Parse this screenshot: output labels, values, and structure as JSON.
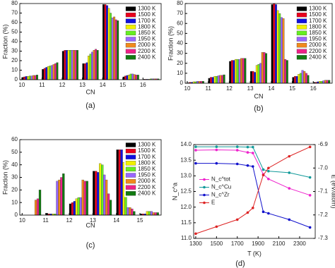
{
  "chart_data": [
    {
      "type": "bar",
      "caption": "(a)",
      "xlabel": "CN",
      "ylabel": "Fraction (%)",
      "categories": [
        "10",
        "11",
        "12",
        "13",
        "14",
        "15",
        "16"
      ],
      "ylim": [
        0,
        80
      ],
      "yticks": [
        0,
        10,
        20,
        30,
        40,
        50,
        60,
        70,
        80
      ],
      "legend": "upper right",
      "series": [
        {
          "name": "1300 K",
          "color": "#000000",
          "values": [
            2.5,
            11,
            30,
            17,
            79,
            3,
            0.5
          ]
        },
        {
          "name": "1500 K",
          "color": "#e8001c",
          "values": [
            3,
            12,
            31,
            17,
            79,
            4,
            0.5
          ]
        },
        {
          "name": "1700 K",
          "color": "#1010e0",
          "values": [
            3.5,
            13,
            31,
            18,
            78,
            4.5,
            0.5
          ]
        },
        {
          "name": "1800 K",
          "color": "#f0f000",
          "values": [
            3.5,
            14,
            31,
            25,
            75,
            5,
            0.5
          ]
        },
        {
          "name": "1850 K",
          "color": "#66ee22",
          "values": [
            4,
            14.5,
            31,
            27,
            70,
            6,
            1
          ]
        },
        {
          "name": "1950 K",
          "color": "#9966ff",
          "values": [
            4,
            15,
            31,
            29,
            65,
            6,
            1
          ]
        },
        {
          "name": "2000 K",
          "color": "#f08a1c",
          "values": [
            4.5,
            16,
            31,
            31,
            66,
            5.5,
            1
          ]
        },
        {
          "name": "2200 K",
          "color": "#ee2288",
          "values": [
            4.5,
            17,
            31,
            32,
            63,
            5,
            1
          ]
        },
        {
          "name": "2400 K",
          "color": "#117a11",
          "values": [
            5,
            18,
            31,
            31,
            62,
            5,
            1
          ]
        }
      ]
    },
    {
      "type": "bar",
      "caption": "(b)",
      "xlabel": "CN",
      "ylabel": "Fraction (%)",
      "categories": [
        "10",
        "11",
        "12",
        "13",
        "14",
        "15",
        "16"
      ],
      "ylim": [
        0,
        80
      ],
      "yticks": [
        0,
        10,
        20,
        30,
        40,
        50,
        60,
        70,
        80
      ],
      "legend": "upper right",
      "series": [
        {
          "name": "1300 K",
          "color": "#000000",
          "values": [
            0.5,
            5,
            22,
            12,
            79,
            6,
            1
          ]
        },
        {
          "name": "1500 K",
          "color": "#e8001c",
          "values": [
            1,
            6,
            23,
            12,
            80,
            7,
            1
          ]
        },
        {
          "name": "1700 K",
          "color": "#1010e0",
          "values": [
            1,
            6,
            23,
            11,
            79,
            7,
            1.5
          ]
        },
        {
          "name": "1800 K",
          "color": "#f0f000",
          "values": [
            1.5,
            7,
            24,
            18,
            73,
            9,
            2
          ]
        },
        {
          "name": "1850 K",
          "color": "#66ee22",
          "values": [
            1.5,
            7,
            24,
            19,
            70,
            10,
            2
          ]
        },
        {
          "name": "1950 K",
          "color": "#9966ff",
          "values": [
            2,
            7.5,
            24,
            20,
            66,
            13,
            2.5
          ]
        },
        {
          "name": "2000 K",
          "color": "#f08a1c",
          "values": [
            2,
            8,
            25,
            31,
            65,
            12,
            3
          ]
        },
        {
          "name": "2200 K",
          "color": "#ee2288",
          "values": [
            2,
            8,
            25,
            31,
            24,
            10,
            3
          ]
        },
        {
          "name": "2400 K",
          "color": "#117a11",
          "values": [
            2,
            8.5,
            25,
            30,
            23,
            8,
            3
          ]
        }
      ]
    },
    {
      "type": "bar",
      "caption": "(c)",
      "xlabel": "CN",
      "ylabel": "Fraction (%)",
      "categories": [
        "10",
        "11",
        "12",
        "13",
        "14",
        "15"
      ],
      "ylim": [
        0,
        60
      ],
      "yticks": [
        0,
        10,
        20,
        30,
        40,
        50,
        60
      ],
      "legend": "upper right",
      "series": [
        {
          "name": "1300 K",
          "color": "#000000",
          "values": [
            0,
            1.5,
            9,
            35,
            52,
            1
          ]
        },
        {
          "name": "1500 K",
          "color": "#e8001c",
          "values": [
            0,
            1,
            10,
            35,
            52,
            1
          ]
        },
        {
          "name": "1700 K",
          "color": "#1010e0",
          "values": [
            0,
            1,
            11,
            34,
            52,
            1
          ]
        },
        {
          "name": "1800 K",
          "color": "#f0f000",
          "values": [
            0,
            1,
            13,
            41,
            42,
            3
          ]
        },
        {
          "name": "1850 K",
          "color": "#66ee22",
          "values": [
            0,
            1,
            14,
            40,
            42,
            3
          ]
        },
        {
          "name": "1950 K",
          "color": "#9966ff",
          "values": [
            0,
            27,
            14,
            32,
            6,
            3
          ]
        },
        {
          "name": "2000 K",
          "color": "#f08a1c",
          "values": [
            12,
            28,
            28,
            28,
            6,
            2
          ]
        },
        {
          "name": "2200 K",
          "color": "#ee2288",
          "values": [
            13,
            30,
            27,
            17,
            5,
            2
          ]
        },
        {
          "name": "2400 K",
          "color": "#117a11",
          "values": [
            20,
            33,
            27,
            12,
            3,
            2
          ]
        }
      ]
    },
    {
      "type": "line",
      "caption": "(d)",
      "xlabel": "T (K)",
      "ylabel": "N_c^a",
      "y2label": "E (eV/atom)",
      "x": [
        1300,
        1500,
        1700,
        1800,
        1850,
        1950,
        2000,
        2200,
        2400
      ],
      "xlim": [
        1280,
        2450
      ],
      "xticks": [
        1300,
        1500,
        1700,
        1900,
        2100,
        2300
      ],
      "ylim": [
        11,
        14
      ],
      "yticks": [
        {
          "value": 11,
          "label": "11.0"
        },
        11.5,
        {
          "value": 12,
          "label": "12.0"
        },
        12.5,
        {
          "value": 13,
          "label": "13.0"
        },
        13.5,
        {
          "value": 14,
          "label": "14.0"
        }
      ],
      "y2lim": [
        -7.3,
        -6.9
      ],
      "y2ticks": [
        -6.9,
        {
          "value": -7,
          "label": "-7.0"
        },
        -7.1,
        -7.2,
        -7.3
      ],
      "legend": "center left",
      "series": [
        {
          "name": "N_c^tot",
          "color": "#ee22cc",
          "values": [
            13.82,
            13.83,
            13.82,
            13.75,
            13.73,
            13.05,
            12.9,
            12.6,
            12.38
          ]
        },
        {
          "name": "N_c^Cu",
          "color": "#119999",
          "values": [
            13.93,
            13.93,
            13.93,
            13.92,
            13.92,
            13.2,
            13.15,
            13.1,
            12.95
          ]
        },
        {
          "name": "N_c^Zr",
          "color": "#1010cc",
          "values": [
            13.4,
            13.4,
            13.38,
            13.33,
            13.3,
            11.85,
            11.8,
            11.6,
            11.35
          ]
        },
        {
          "name": "E",
          "color": "#dd2222",
          "axis": "y2",
          "values": [
            -7.28,
            -7.25,
            -7.22,
            -7.19,
            -7.17,
            -7.03,
            -7.0,
            -6.95,
            -6.91
          ]
        }
      ]
    }
  ]
}
